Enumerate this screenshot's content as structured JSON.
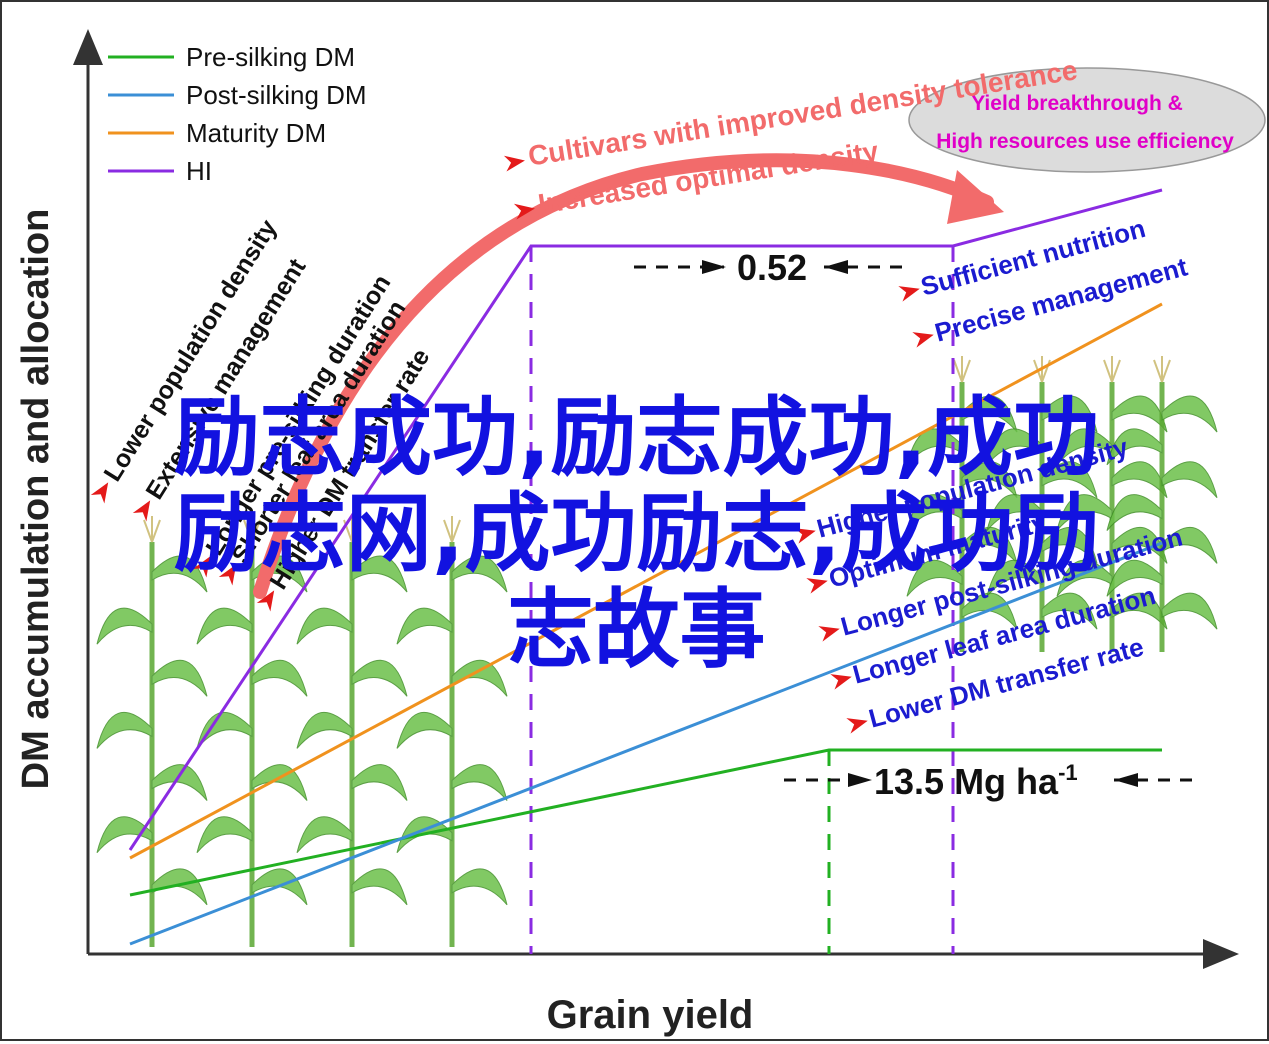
{
  "chart_data": {
    "type": "line",
    "xlabel": "Grain yield",
    "ylabel": "DM accumulation and allocation",
    "legend_position": "top-left",
    "grid": false,
    "legend": [
      {
        "name": "Pre-silking DM",
        "color": "#22b022"
      },
      {
        "name": "Post-silking DM",
        "color": "#3b8fd6"
      },
      {
        "name": "Maturity DM",
        "color": "#f0921e"
      },
      {
        "name": "HI",
        "color": "#8a2be2"
      }
    ],
    "annotations": {
      "hi_value": "0.52",
      "dm_value_prefix": "13.5 Mg ha",
      "dm_value_sup": "-1",
      "arrow_top_1": "Cultivars with improved density tolerance",
      "arrow_top_2": "Increased optimal density",
      "ellipse_line_1": "Yield breakthrough &",
      "ellipse_line_2": "High resources use efficiency",
      "left_factors": [
        "Lower population density",
        "Extensive management",
        "Longer pre-silking duration",
        "Shorter leaf area duration",
        "Higher DM transfer rate"
      ],
      "right_upper_factors": [
        "Sufficient nutrition",
        "Precise management"
      ],
      "right_lower_factors": [
        "Higher population density",
        "Optimum maturity",
        "Longer post-silking duration",
        "Longer leaf area duration",
        "Lower DM transfer rate"
      ]
    }
  },
  "overlay": {
    "line1": "励志成功,励志成功,成功",
    "line2": "励志网,成功励志,成功励",
    "line3": "志故事"
  },
  "colors": {
    "pre_silking": "#22b022",
    "post_silking": "#3b8fd6",
    "maturity": "#f0921e",
    "hi": "#8a2be2",
    "arrow": "#f26b6b",
    "annotation_text": "#1b1bd0",
    "overlay_text": "#1212e0",
    "ellipse_text": "#e000c8"
  }
}
